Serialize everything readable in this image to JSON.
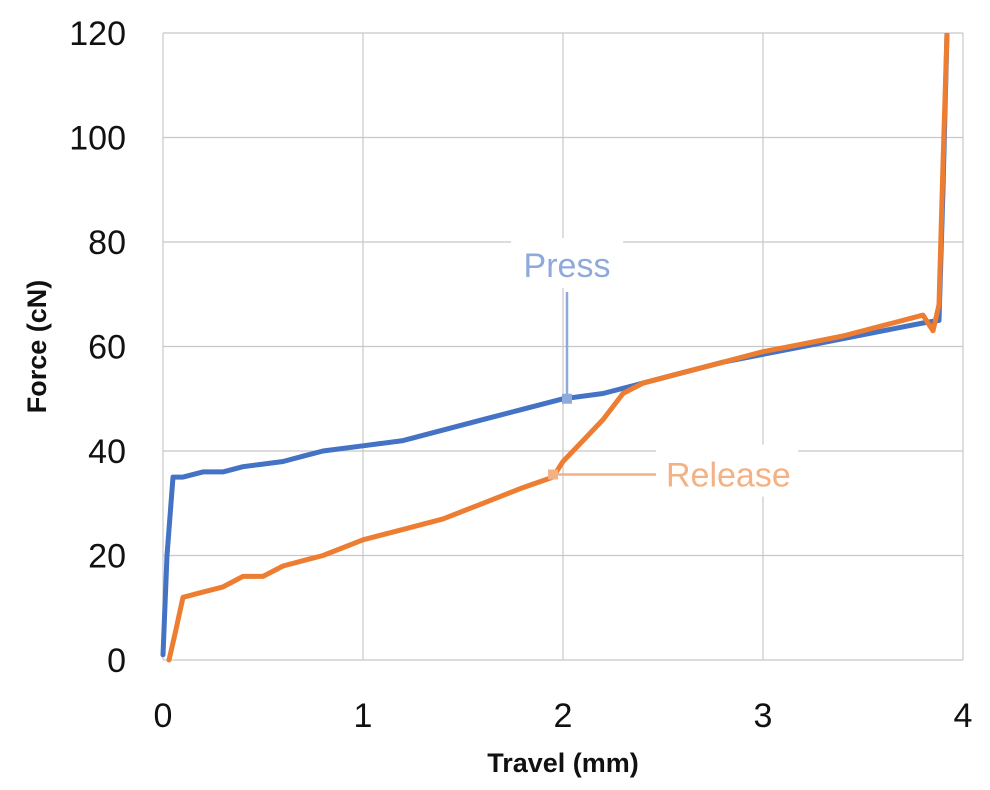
{
  "chart_data": {
    "type": "line",
    "title": "",
    "xlabel": "Travel (mm)",
    "ylabel": "Force (cN)",
    "xlim": [
      0,
      4
    ],
    "ylim": [
      0,
      120
    ],
    "xticks": [
      0,
      1,
      2,
      3,
      4
    ],
    "yticks": [
      0,
      20,
      40,
      60,
      80,
      100,
      120
    ],
    "grid": true,
    "legend": "none",
    "series": [
      {
        "name": "Press",
        "color": "#4472c4",
        "x": [
          0.0,
          0.02,
          0.05,
          0.1,
          0.2,
          0.3,
          0.4,
          0.5,
          0.6,
          0.7,
          0.8,
          1.0,
          1.2,
          1.4,
          1.6,
          1.8,
          2.0,
          2.2,
          2.4,
          2.6,
          2.8,
          3.0,
          3.2,
          3.4,
          3.6,
          3.8,
          3.88,
          3.9,
          3.92
        ],
        "y": [
          1,
          20,
          35,
          35,
          36,
          36,
          37,
          37.5,
          38,
          39,
          40,
          41,
          42,
          44,
          46,
          48,
          50,
          51,
          53,
          55,
          57,
          58.5,
          60,
          61.5,
          63,
          64.5,
          65,
          90,
          120
        ]
      },
      {
        "name": "Release",
        "color": "#ed7d31",
        "x": [
          0.03,
          0.06,
          0.1,
          0.2,
          0.3,
          0.4,
          0.5,
          0.6,
          0.7,
          0.8,
          1.0,
          1.2,
          1.4,
          1.6,
          1.8,
          1.95,
          2.0,
          2.1,
          2.2,
          2.3,
          2.4,
          2.6,
          2.8,
          3.0,
          3.2,
          3.4,
          3.6,
          3.8,
          3.85,
          3.88,
          3.9,
          3.92
        ],
        "y": [
          0,
          5,
          12,
          13,
          14,
          16,
          16,
          18,
          19,
          20,
          23,
          25,
          27,
          30,
          33,
          35,
          38,
          42,
          46,
          51,
          53,
          55,
          57,
          59,
          60.5,
          62,
          64,
          66,
          63,
          68,
          95,
          120
        ]
      }
    ],
    "annotations": [
      {
        "text": "Press",
        "series": "Press",
        "x": 2.02,
        "y": 50,
        "color": "#8eaadb"
      },
      {
        "text": "Release",
        "series": "Release",
        "x": 1.95,
        "y": 35.5,
        "color": "#f4b183"
      }
    ]
  }
}
